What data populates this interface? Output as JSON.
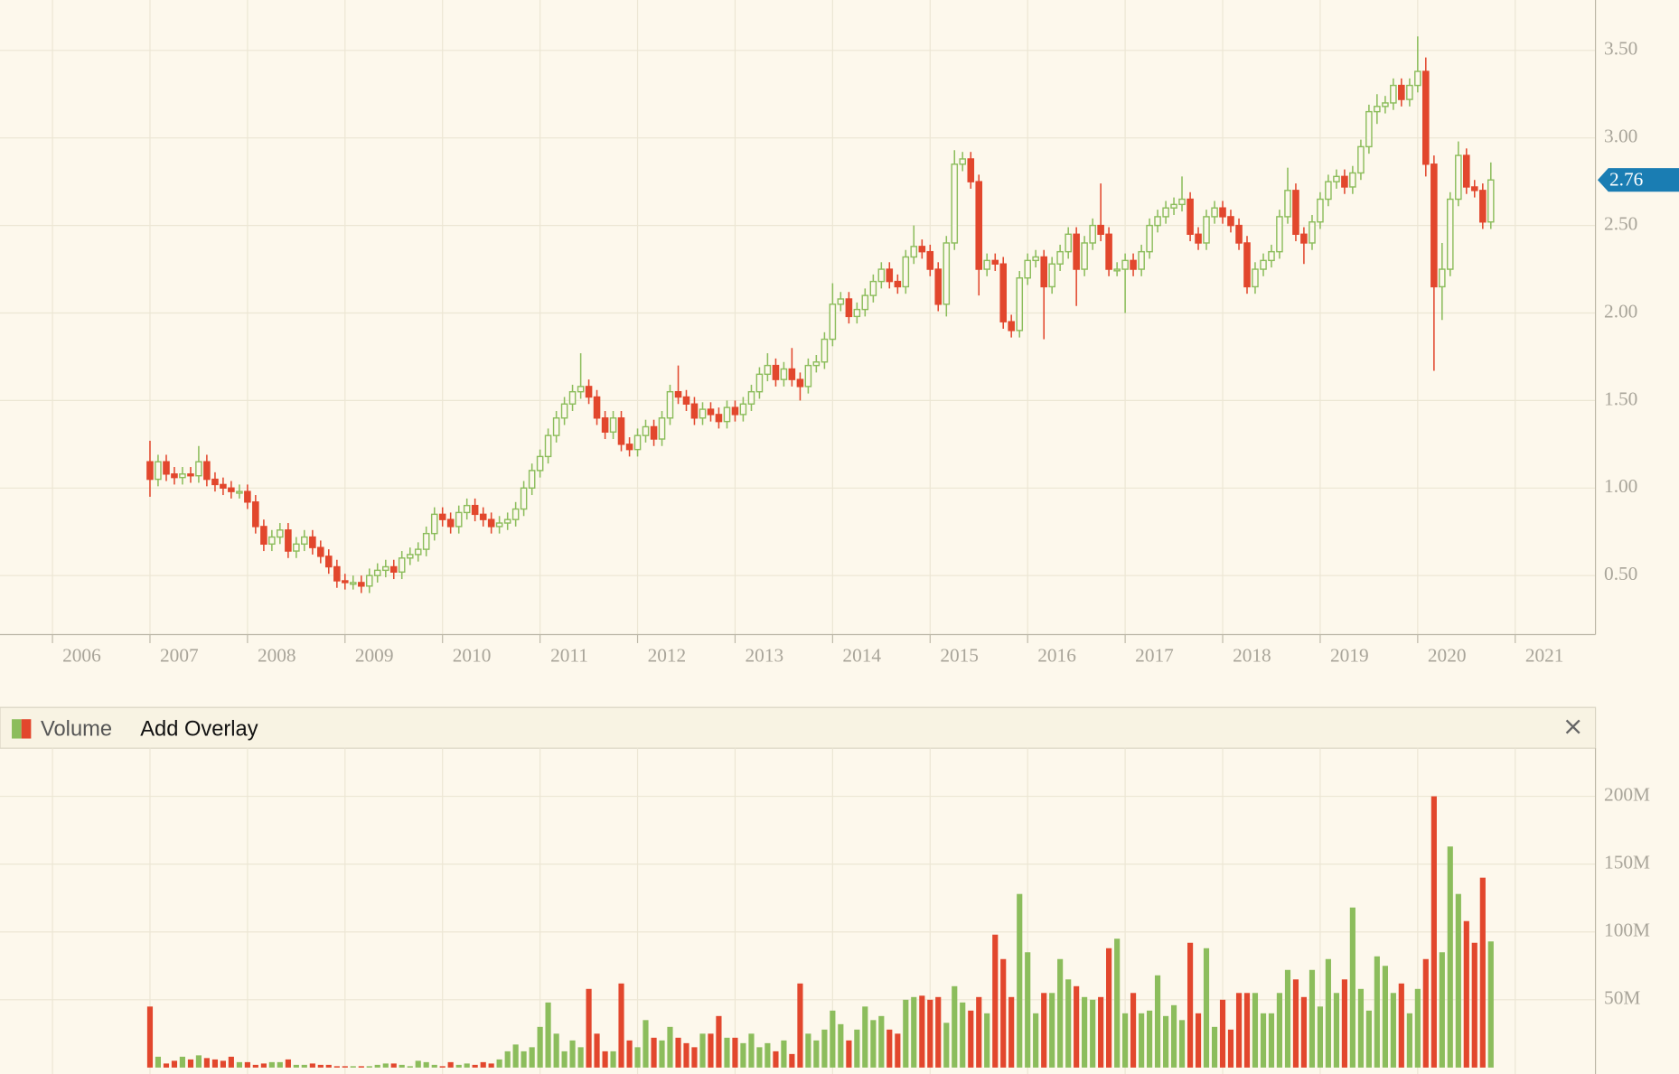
{
  "chart_data": [
    {
      "type": "candlestick",
      "x": [
        2007,
        2007.083,
        2007.167,
        2007.25,
        2007.333,
        2007.417,
        2007.5,
        2007.583,
        2007.667,
        2007.75,
        2007.833,
        2007.917,
        2008,
        2008.083,
        2008.167,
        2008.25,
        2008.333,
        2008.417,
        2008.5,
        2008.583,
        2008.667,
        2008.75,
        2008.833,
        2008.917,
        2009,
        2009.083,
        2009.167,
        2009.25,
        2009.333,
        2009.417,
        2009.5,
        2009.583,
        2009.667,
        2009.75,
        2009.833,
        2009.917,
        2010,
        2010.083,
        2010.167,
        2010.25,
        2010.333,
        2010.417,
        2010.5,
        2010.583,
        2010.667,
        2010.75,
        2010.833,
        2010.917,
        2011,
        2011.083,
        2011.167,
        2011.25,
        2011.333,
        2011.417,
        2011.5,
        2011.583,
        2011.667,
        2011.75,
        2011.833,
        2011.917,
        2012,
        2012.083,
        2012.167,
        2012.25,
        2012.333,
        2012.417,
        2012.5,
        2012.583,
        2012.667,
        2012.75,
        2012.833,
        2012.917,
        2013,
        2013.083,
        2013.167,
        2013.25,
        2013.333,
        2013.417,
        2013.5,
        2013.583,
        2013.667,
        2013.75,
        2013.833,
        2013.917,
        2014,
        2014.083,
        2014.167,
        2014.25,
        2014.333,
        2014.417,
        2014.5,
        2014.583,
        2014.667,
        2014.75,
        2014.833,
        2014.917,
        2015,
        2015.083,
        2015.167,
        2015.25,
        2015.333,
        2015.417,
        2015.5,
        2015.583,
        2015.667,
        2015.75,
        2015.833,
        2015.917,
        2016,
        2016.083,
        2016.167,
        2016.25,
        2016.333,
        2016.417,
        2016.5,
        2016.583,
        2016.667,
        2016.75,
        2016.833,
        2016.917,
        2017,
        2017.083,
        2017.167,
        2017.25,
        2017.333,
        2017.417,
        2017.5,
        2017.583,
        2017.667,
        2017.75,
        2017.833,
        2017.917,
        2018,
        2018.083,
        2018.167,
        2018.25,
        2018.333,
        2018.417,
        2018.5,
        2018.583,
        2018.667,
        2018.75,
        2018.833,
        2018.917,
        2019,
        2019.083,
        2019.167,
        2019.25,
        2019.333,
        2019.417,
        2019.5,
        2019.583,
        2019.667,
        2019.75,
        2019.833,
        2019.917,
        2020,
        2020.083,
        2020.167,
        2020.25,
        2020.333,
        2020.417,
        2020.5,
        2020.583,
        2020.667,
        2020.75
      ],
      "open": [
        1.15,
        1.05,
        1.15,
        1.08,
        1.06,
        1.08,
        1.07,
        1.15,
        1.05,
        1.02,
        1.0,
        0.98,
        0.98,
        0.92,
        0.78,
        0.68,
        0.72,
        0.76,
        0.64,
        0.68,
        0.72,
        0.66,
        0.61,
        0.55,
        0.47,
        0.46,
        0.46,
        0.44,
        0.5,
        0.53,
        0.55,
        0.52,
        0.6,
        0.62,
        0.65,
        0.74,
        0.85,
        0.82,
        0.78,
        0.86,
        0.9,
        0.85,
        0.82,
        0.78,
        0.8,
        0.82,
        0.88,
        1.0,
        1.1,
        1.18,
        1.3,
        1.4,
        1.48,
        1.55,
        1.58,
        1.52,
        1.4,
        1.32,
        1.4,
        1.25,
        1.22,
        1.3,
        1.35,
        1.28,
        1.4,
        1.55,
        1.52,
        1.48,
        1.4,
        1.45,
        1.42,
        1.38,
        1.46,
        1.42,
        1.48,
        1.55,
        1.65,
        1.7,
        1.62,
        1.68,
        1.62,
        1.58,
        1.7,
        1.72,
        1.85,
        2.05,
        2.08,
        1.98,
        2.02,
        2.1,
        2.18,
        2.25,
        2.18,
        2.15,
        2.32,
        2.38,
        2.35,
        2.25,
        2.05,
        2.4,
        2.85,
        2.88,
        2.75,
        2.25,
        2.3,
        2.28,
        1.95,
        1.9,
        2.2,
        2.3,
        2.32,
        2.15,
        2.28,
        2.35,
        2.45,
        2.25,
        2.4,
        2.5,
        2.45,
        2.25,
        2.25,
        2.3,
        2.25,
        2.35,
        2.5,
        2.55,
        2.6,
        2.62,
        2.65,
        2.45,
        2.4,
        2.55,
        2.6,
        2.55,
        2.5,
        2.4,
        2.15,
        2.25,
        2.3,
        2.35,
        2.55,
        2.7,
        2.45,
        2.4,
        2.52,
        2.65,
        2.75,
        2.78,
        2.72,
        2.8,
        2.95,
        3.15,
        3.18,
        3.2,
        3.3,
        3.22,
        3.3,
        3.38,
        2.85,
        2.15,
        2.25,
        2.65,
        2.9,
        2.72,
        2.7,
        2.52
      ],
      "high": [
        1.27,
        1.19,
        1.19,
        1.12,
        1.12,
        1.12,
        1.24,
        1.19,
        1.09,
        1.06,
        1.04,
        1.02,
        1.02,
        0.96,
        0.82,
        0.76,
        0.8,
        0.8,
        0.72,
        0.76,
        0.76,
        0.7,
        0.65,
        0.59,
        0.51,
        0.5,
        0.5,
        0.54,
        0.57,
        0.59,
        0.59,
        0.64,
        0.66,
        0.69,
        0.78,
        0.89,
        0.89,
        0.86,
        0.9,
        0.94,
        0.94,
        0.89,
        0.86,
        0.84,
        0.86,
        0.92,
        1.04,
        1.14,
        1.22,
        1.34,
        1.44,
        1.52,
        1.59,
        1.77,
        1.62,
        1.56,
        1.44,
        1.44,
        1.44,
        1.29,
        1.34,
        1.39,
        1.39,
        1.44,
        1.59,
        1.7,
        1.56,
        1.52,
        1.49,
        1.49,
        1.46,
        1.5,
        1.5,
        1.52,
        1.59,
        1.69,
        1.77,
        1.74,
        1.72,
        1.8,
        1.66,
        1.74,
        1.76,
        1.89,
        2.17,
        2.12,
        2.12,
        2.06,
        2.14,
        2.22,
        2.29,
        2.29,
        2.22,
        2.36,
        2.5,
        2.42,
        2.39,
        2.29,
        2.44,
        2.93,
        2.92,
        2.92,
        2.79,
        2.34,
        2.34,
        2.32,
        1.99,
        2.24,
        2.34,
        2.36,
        2.36,
        2.32,
        2.39,
        2.49,
        2.49,
        2.44,
        2.54,
        2.74,
        2.49,
        2.29,
        2.34,
        2.34,
        2.39,
        2.54,
        2.59,
        2.64,
        2.66,
        2.78,
        2.69,
        2.49,
        2.59,
        2.64,
        2.64,
        2.59,
        2.54,
        2.44,
        2.29,
        2.34,
        2.39,
        2.59,
        2.83,
        2.74,
        2.49,
        2.56,
        2.69,
        2.79,
        2.82,
        2.82,
        2.84,
        2.99,
        3.19,
        3.25,
        3.24,
        3.34,
        3.34,
        3.34,
        3.58,
        3.46,
        2.9,
        2.4,
        2.69,
        2.98,
        2.94,
        2.76,
        2.74,
        2.86
      ],
      "low": [
        0.95,
        1.01,
        1.04,
        1.02,
        1.02,
        1.03,
        1.03,
        1.01,
        0.98,
        0.96,
        0.94,
        0.94,
        0.88,
        0.74,
        0.64,
        0.64,
        0.68,
        0.6,
        0.6,
        0.64,
        0.62,
        0.57,
        0.51,
        0.43,
        0.42,
        0.42,
        0.4,
        0.4,
        0.46,
        0.49,
        0.48,
        0.48,
        0.56,
        0.58,
        0.61,
        0.7,
        0.78,
        0.74,
        0.74,
        0.82,
        0.81,
        0.78,
        0.74,
        0.74,
        0.76,
        0.78,
        0.84,
        0.96,
        1.06,
        1.14,
        1.26,
        1.36,
        1.44,
        1.51,
        1.48,
        1.36,
        1.28,
        1.28,
        1.21,
        1.18,
        1.18,
        1.26,
        1.24,
        1.24,
        1.36,
        1.48,
        1.44,
        1.36,
        1.36,
        1.38,
        1.34,
        1.34,
        1.38,
        1.38,
        1.44,
        1.51,
        1.61,
        1.58,
        1.58,
        1.58,
        1.5,
        1.54,
        1.66,
        1.68,
        1.81,
        2.01,
        1.94,
        1.94,
        1.98,
        2.06,
        2.14,
        2.14,
        2.11,
        2.11,
        2.28,
        2.31,
        2.21,
        2.01,
        1.98,
        2.36,
        2.81,
        2.71,
        2.1,
        2.21,
        2.24,
        1.91,
        1.86,
        1.86,
        2.16,
        2.26,
        1.85,
        2.11,
        2.24,
        2.31,
        2.04,
        2.21,
        2.36,
        2.41,
        2.21,
        2.21,
        2.0,
        2.21,
        2.21,
        2.31,
        2.46,
        2.51,
        2.56,
        2.58,
        2.41,
        2.36,
        2.36,
        2.51,
        2.51,
        2.46,
        2.36,
        2.11,
        2.11,
        2.21,
        2.26,
        2.31,
        2.51,
        2.41,
        2.28,
        2.36,
        2.48,
        2.61,
        2.71,
        2.68,
        2.68,
        2.76,
        2.91,
        3.08,
        3.14,
        3.16,
        3.18,
        3.18,
        3.26,
        2.78,
        1.67,
        1.96,
        2.21,
        2.61,
        2.68,
        2.66,
        2.48,
        2.48
      ],
      "close": [
        1.05,
        1.15,
        1.08,
        1.06,
        1.08,
        1.07,
        1.15,
        1.05,
        1.02,
        1.0,
        0.98,
        0.98,
        0.92,
        0.78,
        0.68,
        0.72,
        0.76,
        0.64,
        0.68,
        0.72,
        0.66,
        0.61,
        0.55,
        0.47,
        0.46,
        0.46,
        0.44,
        0.5,
        0.53,
        0.55,
        0.52,
        0.6,
        0.62,
        0.65,
        0.74,
        0.85,
        0.82,
        0.78,
        0.86,
        0.9,
        0.85,
        0.82,
        0.78,
        0.8,
        0.82,
        0.88,
        1.0,
        1.1,
        1.18,
        1.3,
        1.4,
        1.48,
        1.55,
        1.58,
        1.52,
        1.4,
        1.32,
        1.4,
        1.25,
        1.22,
        1.3,
        1.35,
        1.28,
        1.4,
        1.55,
        1.52,
        1.48,
        1.4,
        1.45,
        1.42,
        1.38,
        1.46,
        1.42,
        1.48,
        1.55,
        1.65,
        1.7,
        1.62,
        1.68,
        1.62,
        1.58,
        1.7,
        1.72,
        1.85,
        2.05,
        2.08,
        1.98,
        2.02,
        2.1,
        2.18,
        2.25,
        2.18,
        2.15,
        2.32,
        2.38,
        2.35,
        2.25,
        2.05,
        2.4,
        2.85,
        2.88,
        2.75,
        2.25,
        2.3,
        2.28,
        1.95,
        1.9,
        2.2,
        2.3,
        2.32,
        2.15,
        2.28,
        2.35,
        2.45,
        2.25,
        2.4,
        2.5,
        2.45,
        2.25,
        2.25,
        2.3,
        2.25,
        2.35,
        2.5,
        2.55,
        2.6,
        2.62,
        2.65,
        2.45,
        2.4,
        2.55,
        2.6,
        2.55,
        2.5,
        2.4,
        2.15,
        2.25,
        2.3,
        2.35,
        2.55,
        2.7,
        2.45,
        2.4,
        2.52,
        2.65,
        2.75,
        2.78,
        2.72,
        2.8,
        2.95,
        3.15,
        3.18,
        3.2,
        3.3,
        3.22,
        3.3,
        3.38,
        2.85,
        2.15,
        2.25,
        2.65,
        2.9,
        2.72,
        2.7,
        2.52,
        2.76
      ],
      "up_color": "#8cbd5c",
      "down_color": "#e2472d",
      "last_color": "#1a7db3",
      "xlim": [
        2005.462,
        2021.823
      ],
      "xticks": [
        2006,
        2007,
        2008,
        2009,
        2010,
        2011,
        2012,
        2013,
        2014,
        2015,
        2016,
        2017,
        2018,
        2019,
        2020,
        2021
      ],
      "ylim": [
        0.163,
        3.788
      ],
      "yticks": [
        {
          "value": 0.5,
          "label": "0.50"
        },
        {
          "value": 1,
          "label": "1.00"
        },
        {
          "value": 1.5,
          "label": "1.50"
        },
        {
          "value": 2,
          "label": "2.00"
        },
        {
          "value": 2.5,
          "label": "2.50"
        },
        {
          "value": 3,
          "label": "3.00"
        },
        {
          "value": 3.5,
          "label": "3.50"
        }
      ],
      "grid": true
    },
    {
      "type": "bar",
      "title": "Volume",
      "values": [
        45,
        8,
        3,
        5,
        8,
        6,
        9,
        7,
        6,
        5,
        8,
        4,
        4,
        2,
        3,
        4,
        4,
        6,
        2,
        2,
        3,
        2,
        2,
        1,
        1,
        1,
        1,
        1,
        2,
        3,
        3,
        2,
        1,
        5,
        4,
        2,
        1,
        4,
        2,
        3,
        2,
        4,
        3,
        6,
        12,
        17,
        12,
        15,
        30,
        48,
        25,
        12,
        20,
        15,
        58,
        25,
        12,
        12,
        62,
        20,
        15,
        35,
        22,
        20,
        30,
        22,
        18,
        15,
        25,
        25,
        38,
        22,
        22,
        18,
        25,
        15,
        18,
        12,
        20,
        10,
        62,
        25,
        20,
        28,
        42,
        32,
        20,
        28,
        45,
        35,
        38,
        28,
        25,
        50,
        52,
        53,
        50,
        52,
        33,
        60,
        48,
        42,
        52,
        40,
        98,
        80,
        52,
        128,
        85,
        40,
        55,
        55,
        80,
        65,
        60,
        52,
        50,
        52,
        88,
        95,
        40,
        55,
        40,
        42,
        68,
        38,
        46,
        35,
        92,
        40,
        88,
        30,
        50,
        28,
        55,
        55,
        55,
        40,
        40,
        55,
        72,
        65,
        52,
        72,
        45,
        80,
        55,
        65,
        118,
        58,
        42,
        82,
        75,
        55,
        62,
        40,
        58,
        80,
        200,
        85,
        163,
        128,
        108,
        92,
        140,
        93
      ],
      "ylim": [
        0,
        235.5
      ],
      "yticks": [
        {
          "value": 50,
          "label": "50M"
        },
        {
          "value": 100,
          "label": "100M"
        },
        {
          "value": 150,
          "label": "150M"
        },
        {
          "value": 200,
          "label": "200M"
        }
      ],
      "grid": true
    }
  ],
  "ui": {
    "overlay_button": "Add Overlay"
  }
}
